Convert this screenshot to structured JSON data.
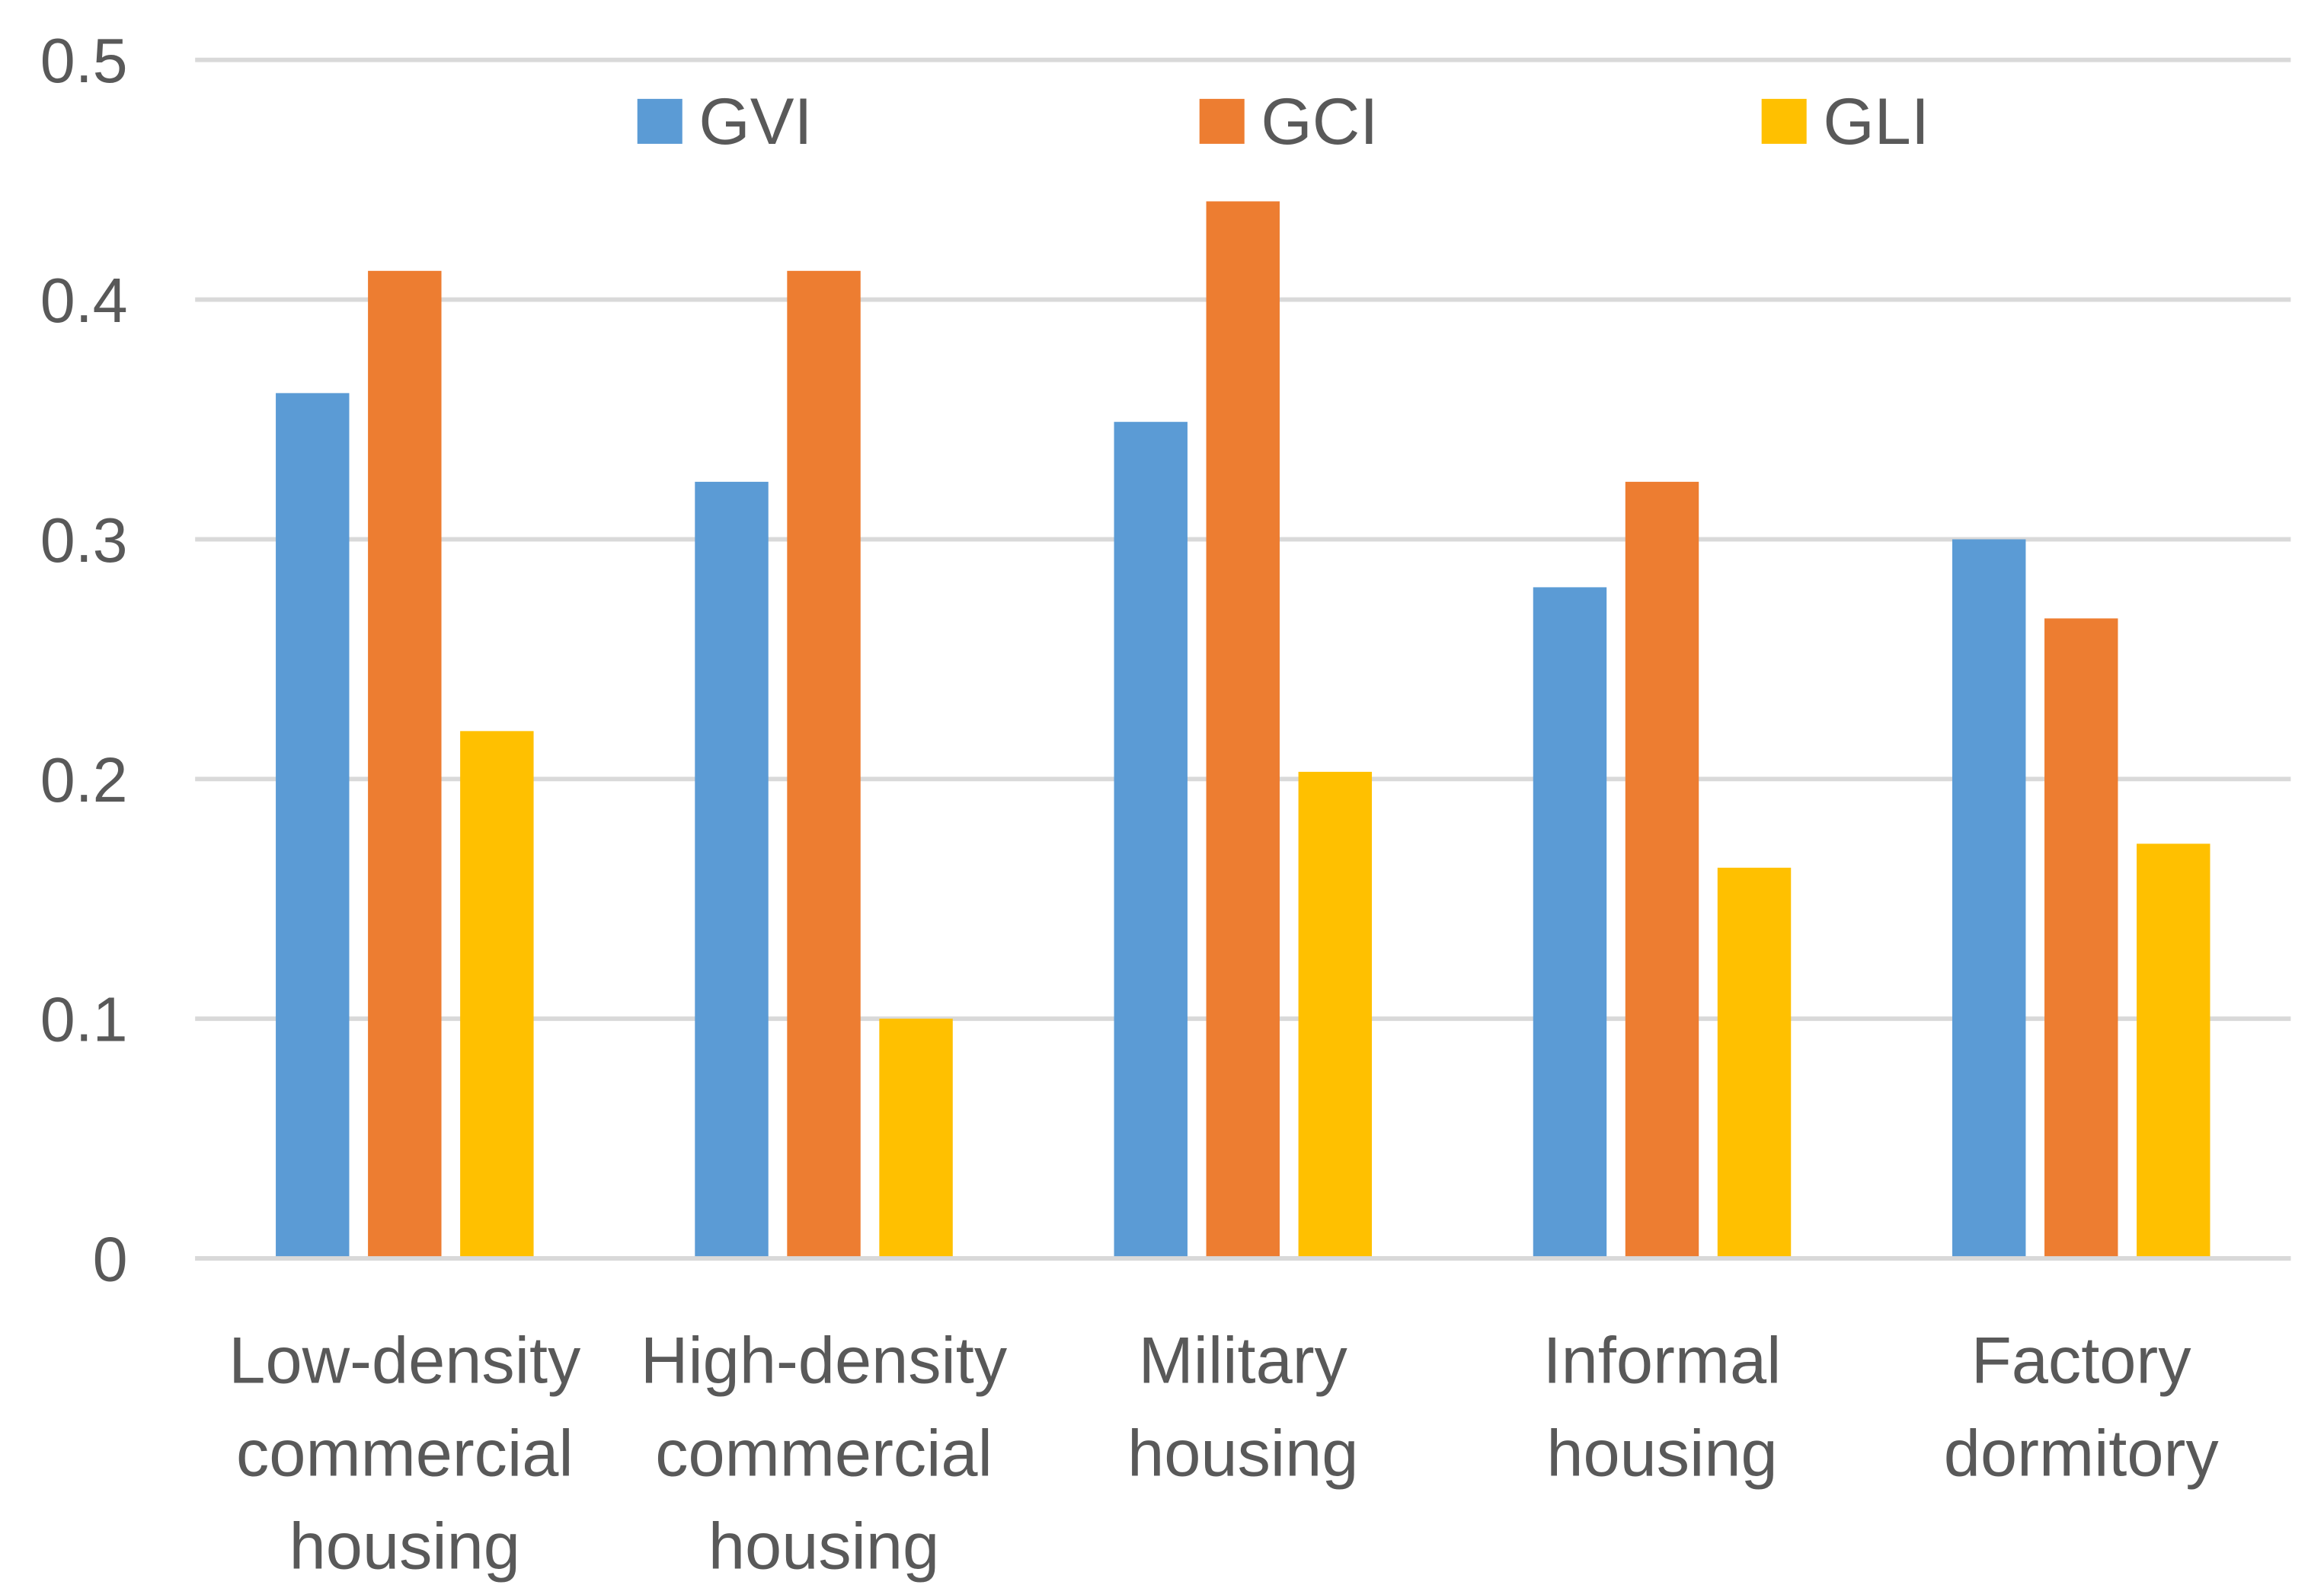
{
  "chart_data": {
    "type": "bar",
    "title": "",
    "xlabel": "",
    "ylabel": "",
    "ylim": [
      0,
      0.5
    ],
    "yticks": [
      "0",
      "0.1",
      "0.2",
      "0.3",
      "0.4",
      "0.5"
    ],
    "grid": true,
    "legend_position": "top",
    "categories": [
      [
        "Low-density",
        "commercial",
        "housing"
      ],
      [
        "High-density",
        "commercial",
        "housing"
      ],
      [
        "Military",
        "housing"
      ],
      [
        "Informal",
        "housing"
      ],
      [
        "Factory",
        "dormitory"
      ]
    ],
    "series": [
      {
        "name": "GVI",
        "color": "#5b9bd5",
        "values": [
          0.361,
          0.324,
          0.349,
          0.28,
          0.3
        ]
      },
      {
        "name": "GCI",
        "color": "#ed7d31",
        "values": [
          0.412,
          0.412,
          0.441,
          0.324,
          0.267
        ]
      },
      {
        "name": "GLI",
        "color": "#ffc000",
        "values": [
          0.22,
          0.1,
          0.203,
          0.163,
          0.173
        ]
      }
    ]
  }
}
